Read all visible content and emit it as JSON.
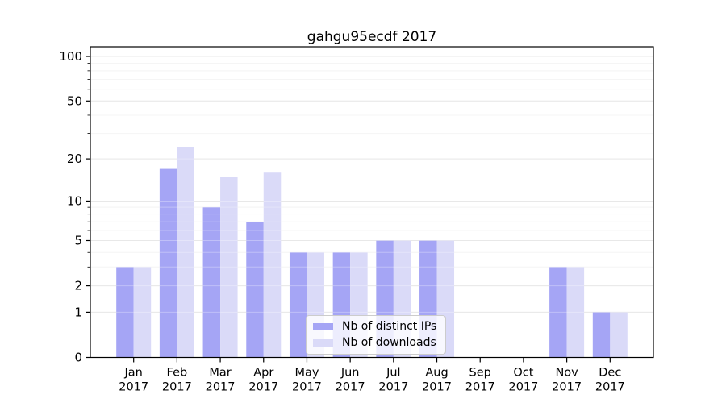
{
  "chart_data": {
    "type": "bar",
    "title": "gahgu95ecdf 2017",
    "categories": [
      "Jan",
      "Feb",
      "Mar",
      "Apr",
      "May",
      "Jun",
      "Jul",
      "Aug",
      "Sep",
      "Oct",
      "Nov",
      "Dec"
    ],
    "category_year": "2017",
    "series": [
      {
        "name": "Nb of distinct IPs",
        "color": "#a5a5f5",
        "values": [
          3,
          17,
          9,
          7,
          4,
          4,
          5,
          5,
          0,
          0,
          3,
          1
        ]
      },
      {
        "name": "Nb of downloads",
        "color": "#dadaf8",
        "values": [
          3,
          24,
          15,
          16,
          4,
          4,
          5,
          5,
          0,
          0,
          3,
          1
        ]
      }
    ],
    "yscale": "log1p",
    "ylim": [
      0,
      100
    ],
    "y_major_ticks": [
      0,
      1,
      2,
      5,
      10,
      20,
      50,
      100
    ],
    "y_minor_gridlines": [
      3,
      4,
      6,
      7,
      8,
      9,
      30,
      40,
      60,
      70,
      80,
      90
    ],
    "grid": true,
    "legend_position": "lower-center"
  },
  "colors": {
    "background": "#ffffff",
    "axis": "#000000",
    "tick_label": "#000000",
    "grid_major": "#dedede",
    "grid_minor": "#f1f1f1",
    "grid_overlay_on_bars": "rgba(255,255,255,0.3)",
    "legend_border": "#cccccc",
    "legend_background": "rgba(255,255,255,0.8)"
  }
}
